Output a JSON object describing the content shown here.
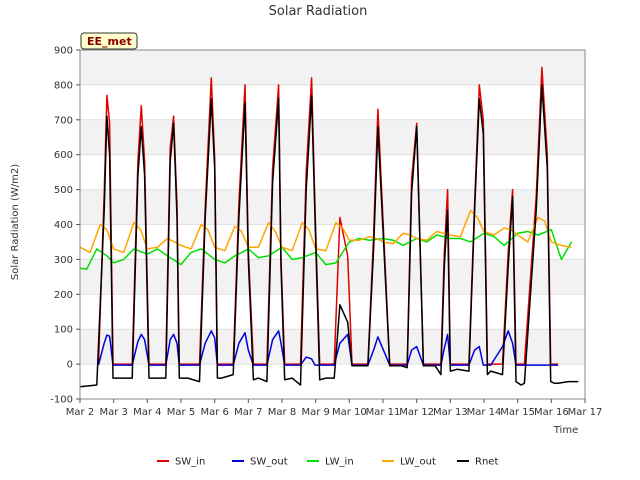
{
  "chart_data": {
    "type": "line",
    "title": "Solar Radiation",
    "xlabel": "Time",
    "ylabel": "Solar Radiation (W/m2)",
    "station_label": "EE_met",
    "ylim": [
      -100,
      900
    ],
    "xlim": [
      0,
      15
    ],
    "x_tick_values": [
      0,
      1,
      2,
      3,
      4,
      5,
      6,
      7,
      8,
      9,
      10,
      11,
      12,
      13,
      14,
      15
    ],
    "x_tick_labels": [
      "Mar 2",
      "Mar 3",
      "Mar 4",
      "Mar 5",
      "Mar 6",
      "Mar 7",
      "Mar 8",
      "Mar 9",
      "Mar 10",
      "Mar 11",
      "Mar 12",
      "Mar 13",
      "Mar 14",
      "Mar 15",
      "Mar 16",
      "Mar 17"
    ],
    "y_ticks": [
      -100,
      0,
      100,
      200,
      300,
      400,
      500,
      600,
      700,
      800,
      900
    ],
    "grid": true,
    "legend_position": "bottom",
    "x_unit": "days since Mar 2",
    "series": [
      {
        "name": "SW_in",
        "color": "#e00000",
        "x": [
          0.55,
          0.72,
          0.8,
          0.88,
          0.98,
          1.2,
          1.55,
          1.72,
          1.82,
          1.92,
          2.05,
          2.2,
          2.55,
          2.68,
          2.78,
          2.88,
          2.95,
          3.2,
          3.55,
          3.72,
          3.9,
          4.0,
          4.08,
          4.2,
          4.55,
          4.72,
          4.9,
          5.0,
          5.15,
          5.3,
          5.55,
          5.72,
          5.9,
          5.97,
          6.08,
          6.3,
          6.55,
          6.72,
          6.88,
          6.98,
          7.12,
          7.3,
          7.55,
          7.72,
          7.95,
          8.08,
          8.3,
          8.55,
          8.72,
          8.85,
          9.2,
          9.55,
          9.72,
          9.85,
          10.0,
          10.2,
          10.55,
          10.72,
          10.82,
          10.92,
          11.0,
          11.2,
          11.55,
          11.72,
          11.86,
          11.98,
          12.1,
          12.2,
          12.55,
          12.72,
          12.85,
          12.95,
          13.1,
          13.2,
          13.55,
          13.72,
          13.88,
          13.98,
          14.1,
          14.2
        ],
        "y": [
          0,
          490,
          770,
          690,
          0,
          0,
          0,
          580,
          740,
          580,
          0,
          0,
          0,
          620,
          710,
          460,
          0,
          0,
          0,
          450,
          820,
          590,
          0,
          0,
          0,
          460,
          800,
          330,
          0,
          0,
          0,
          560,
          800,
          300,
          0,
          0,
          0,
          550,
          820,
          450,
          0,
          0,
          0,
          420,
          310,
          0,
          0,
          0,
          370,
          730,
          0,
          0,
          0,
          530,
          690,
          0,
          0,
          0,
          320,
          500,
          0,
          0,
          0,
          460,
          800,
          700,
          0,
          0,
          0,
          320,
          500,
          0,
          0,
          0,
          480,
          850,
          600,
          0,
          0,
          0
        ]
      },
      {
        "name": "SW_out",
        "color": "#0000e0",
        "x": [
          0.55,
          0.72,
          0.8,
          0.88,
          0.98,
          1.2,
          1.55,
          1.72,
          1.82,
          1.92,
          2.05,
          2.2,
          2.55,
          2.68,
          2.78,
          2.88,
          2.95,
          3.2,
          3.55,
          3.72,
          3.9,
          4.0,
          4.08,
          4.2,
          4.55,
          4.72,
          4.9,
          5.0,
          5.15,
          5.3,
          5.55,
          5.72,
          5.9,
          5.97,
          6.08,
          6.3,
          6.55,
          6.72,
          6.88,
          6.98,
          7.12,
          7.3,
          7.55,
          7.72,
          7.95,
          8.08,
          8.3,
          8.55,
          8.72,
          8.85,
          9.2,
          9.55,
          9.72,
          9.85,
          10.0,
          10.2,
          10.55,
          10.72,
          10.82,
          10.92,
          11.0,
          11.2,
          11.55,
          11.72,
          11.86,
          11.98,
          12.1,
          12.2,
          12.55,
          12.72,
          12.85,
          12.95,
          13.1,
          13.2,
          13.55,
          13.72,
          13.88,
          13.98,
          14.1,
          14.2
        ],
        "y": [
          -3,
          60,
          83,
          80,
          -3,
          -3,
          -3,
          65,
          85,
          70,
          -3,
          -3,
          -3,
          70,
          85,
          60,
          -3,
          -3,
          -3,
          60,
          95,
          75,
          -3,
          -3,
          -3,
          60,
          90,
          40,
          -3,
          -3,
          -3,
          70,
          95,
          60,
          -3,
          -3,
          -3,
          20,
          15,
          -3,
          -3,
          -3,
          -3,
          60,
          85,
          -3,
          -3,
          -3,
          40,
          78,
          -3,
          -3,
          -3,
          40,
          50,
          -3,
          -3,
          -3,
          45,
          85,
          -3,
          -3,
          -3,
          40,
          50,
          -3,
          -3,
          -3,
          50,
          95,
          60,
          -3,
          -3,
          -3,
          -3,
          -3,
          -3,
          -3,
          -3,
          -3
        ]
      },
      {
        "name": "LW_in",
        "color": "#00e000",
        "x": [
          0,
          0.2,
          0.5,
          0.8,
          1.0,
          1.3,
          1.6,
          2.0,
          2.3,
          2.6,
          3.0,
          3.3,
          3.6,
          4.0,
          4.3,
          4.6,
          5.0,
          5.3,
          5.6,
          6.0,
          6.3,
          6.6,
          7.0,
          7.3,
          7.6,
          8.0,
          8.3,
          8.6,
          9.0,
          9.3,
          9.6,
          10.0,
          10.3,
          10.6,
          11.0,
          11.3,
          11.6,
          12.0,
          12.3,
          12.6,
          13.0,
          13.3,
          13.6,
          14.0,
          14.3,
          14.6
        ],
        "y": [
          275,
          272,
          330,
          310,
          290,
          300,
          330,
          315,
          330,
          310,
          285,
          320,
          330,
          300,
          290,
          310,
          330,
          305,
          310,
          335,
          300,
          305,
          320,
          285,
          290,
          350,
          360,
          355,
          360,
          355,
          340,
          360,
          350,
          370,
          360,
          360,
          350,
          375,
          365,
          340,
          375,
          380,
          370,
          385,
          300,
          350
        ]
      },
      {
        "name": "LW_out",
        "color": "#ffa500",
        "x": [
          0,
          0.3,
          0.6,
          0.8,
          1.0,
          1.3,
          1.6,
          1.8,
          2.0,
          2.3,
          2.6,
          2.8,
          3.0,
          3.3,
          3.6,
          3.8,
          4.0,
          4.3,
          4.6,
          4.8,
          5.0,
          5.3,
          5.6,
          5.8,
          6.0,
          6.3,
          6.6,
          6.8,
          7.0,
          7.3,
          7.6,
          7.8,
          8.0,
          8.3,
          8.6,
          8.8,
          9.0,
          9.3,
          9.6,
          9.8,
          10.0,
          10.3,
          10.6,
          10.8,
          11.0,
          11.3,
          11.6,
          11.8,
          12.0,
          12.3,
          12.6,
          12.8,
          13.0,
          13.3,
          13.6,
          13.8,
          14.0,
          14.3,
          14.6
        ],
        "y": [
          335,
          320,
          400,
          385,
          330,
          320,
          405,
          385,
          330,
          335,
          360,
          350,
          340,
          330,
          400,
          385,
          335,
          325,
          395,
          380,
          335,
          335,
          405,
          380,
          335,
          325,
          405,
          385,
          330,
          325,
          405,
          390,
          355,
          355,
          365,
          360,
          350,
          345,
          375,
          370,
          360,
          355,
          380,
          375,
          370,
          365,
          440,
          420,
          380,
          370,
          390,
          385,
          370,
          350,
          420,
          410,
          350,
          340,
          335
        ]
      },
      {
        "name": "Rnet",
        "color": "#000000",
        "x": [
          0,
          0.5,
          0.72,
          0.8,
          0.88,
          0.98,
          1.2,
          1.55,
          1.72,
          1.82,
          1.92,
          2.05,
          2.2,
          2.55,
          2.68,
          2.78,
          2.88,
          2.95,
          3.2,
          3.55,
          3.72,
          3.9,
          4.0,
          4.08,
          4.2,
          4.55,
          4.72,
          4.9,
          5.0,
          5.15,
          5.3,
          5.55,
          5.72,
          5.9,
          5.97,
          6.08,
          6.3,
          6.55,
          6.72,
          6.88,
          6.98,
          7.12,
          7.3,
          7.55,
          7.72,
          7.95,
          8.08,
          8.3,
          8.55,
          8.72,
          8.85,
          9.2,
          9.55,
          9.72,
          9.85,
          10.0,
          10.2,
          10.55,
          10.72,
          10.82,
          10.92,
          11.0,
          11.2,
          11.55,
          11.72,
          11.86,
          11.98,
          12.1,
          12.2,
          12.55,
          12.72,
          12.85,
          12.95,
          13.1,
          13.2,
          13.55,
          13.72,
          13.88,
          13.98,
          14.1,
          14.2,
          14.5,
          14.8
        ],
        "y": [
          -65,
          -60,
          440,
          710,
          600,
          -40,
          -40,
          -40,
          540,
          680,
          540,
          -40,
          -40,
          -40,
          580,
          690,
          420,
          -40,
          -40,
          -50,
          420,
          760,
          560,
          -40,
          -40,
          -30,
          420,
          750,
          300,
          -45,
          -40,
          -50,
          520,
          760,
          280,
          -45,
          -40,
          -60,
          500,
          770,
          420,
          -45,
          -40,
          -40,
          170,
          120,
          -5,
          -5,
          -5,
          330,
          680,
          -5,
          -5,
          -10,
          490,
          680,
          -5,
          -5,
          -30,
          280,
          440,
          -20,
          -15,
          -20,
          440,
          760,
          660,
          -30,
          -20,
          -30,
          280,
          480,
          -50,
          -60,
          -55,
          440,
          800,
          560,
          -50,
          -55,
          -55,
          -50,
          -50
        ]
      }
    ]
  }
}
